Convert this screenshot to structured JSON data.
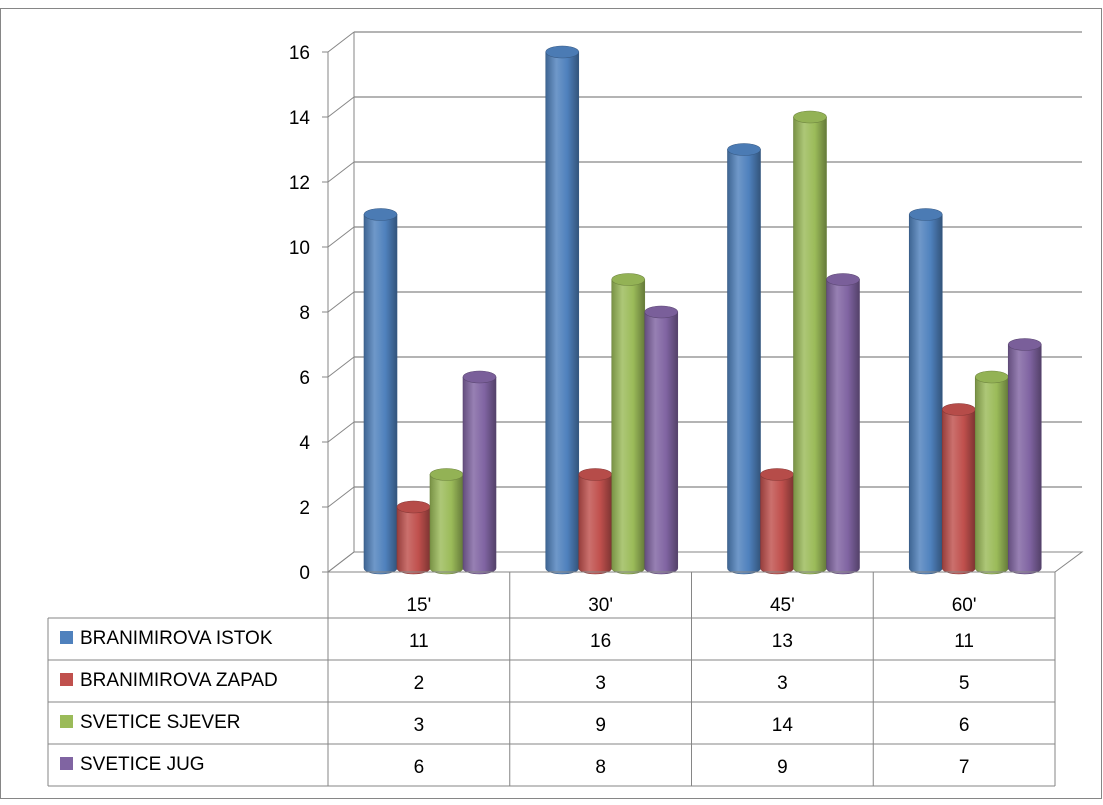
{
  "chart_data": {
    "type": "bar",
    "title": "",
    "xlabel": "",
    "ylabel": "",
    "categories": [
      "15'",
      "30'",
      "45'",
      "60'"
    ],
    "ylim": [
      0,
      16
    ],
    "y_ticks": [
      0,
      2,
      4,
      6,
      8,
      10,
      12,
      14,
      16
    ],
    "grid": true,
    "three_d": true,
    "legend": "data-table",
    "series": [
      {
        "name": "BRANIMIROVA ISTOK",
        "values": [
          11,
          16,
          13,
          11
        ],
        "color": "#4F81BD"
      },
      {
        "name": "BRANIMIROVA ZAPAD",
        "values": [
          2,
          3,
          3,
          5
        ],
        "color": "#C0504D"
      },
      {
        "name": "SVETICE SJEVER",
        "values": [
          3,
          9,
          14,
          6
        ],
        "color": "#9BBB59"
      },
      {
        "name": "SVETICE JUG",
        "values": [
          6,
          8,
          9,
          7
        ],
        "color": "#8064A2"
      }
    ]
  }
}
